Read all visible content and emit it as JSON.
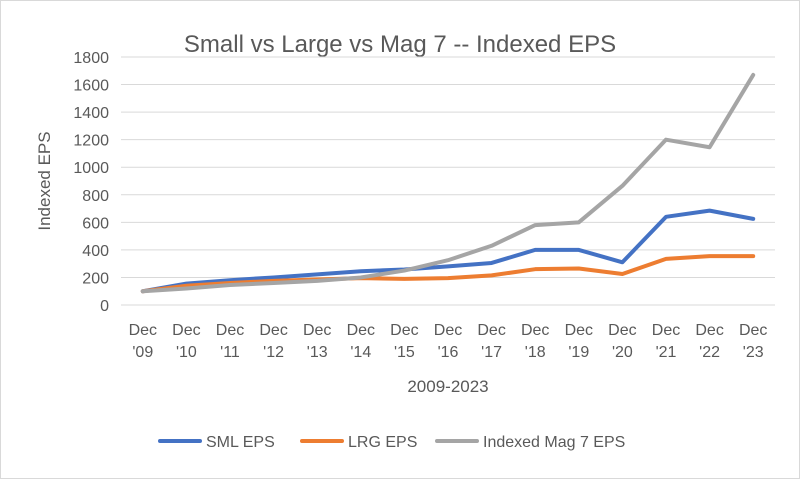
{
  "chart_data": {
    "type": "line",
    "title": "Small vs Large vs Mag 7 -- Indexed EPS",
    "xlabel": "2009-2023",
    "ylabel": "Indexed EPS",
    "ylim": [
      0,
      1800
    ],
    "yticks": [
      0,
      200,
      400,
      600,
      800,
      1000,
      1200,
      1400,
      1600,
      1800
    ],
    "grid": true,
    "legend": "bottom",
    "categories": [
      [
        "Dec",
        "'09"
      ],
      [
        "Dec",
        "'10"
      ],
      [
        "Dec",
        "'11"
      ],
      [
        "Dec",
        "'12"
      ],
      [
        "Dec",
        "'13"
      ],
      [
        "Dec",
        "'14"
      ],
      [
        "Dec",
        "'15"
      ],
      [
        "Dec",
        "'16"
      ],
      [
        "Dec",
        "'17"
      ],
      [
        "Dec",
        "'18"
      ],
      [
        "Dec",
        "'19"
      ],
      [
        "Dec",
        "'20"
      ],
      [
        "Dec",
        "'21"
      ],
      [
        "Dec",
        "'22"
      ],
      [
        "Dec",
        "'23"
      ]
    ],
    "series": [
      {
        "name": "SML EPS",
        "color": "#4472c4",
        "values": [
          100,
          155,
          180,
          200,
          222,
          245,
          258,
          280,
          305,
          400,
          400,
          310,
          640,
          685,
          625
        ]
      },
      {
        "name": "LRG EPS",
        "color": "#ed7d31",
        "values": [
          100,
          140,
          160,
          175,
          185,
          195,
          190,
          195,
          215,
          260,
          265,
          225,
          335,
          355,
          355
        ]
      },
      {
        "name": "Indexed Mag 7 EPS",
        "color": "#a5a5a5",
        "values": [
          100,
          120,
          145,
          160,
          175,
          200,
          250,
          325,
          430,
          580,
          600,
          865,
          1200,
          1145,
          1670
        ]
      }
    ]
  }
}
